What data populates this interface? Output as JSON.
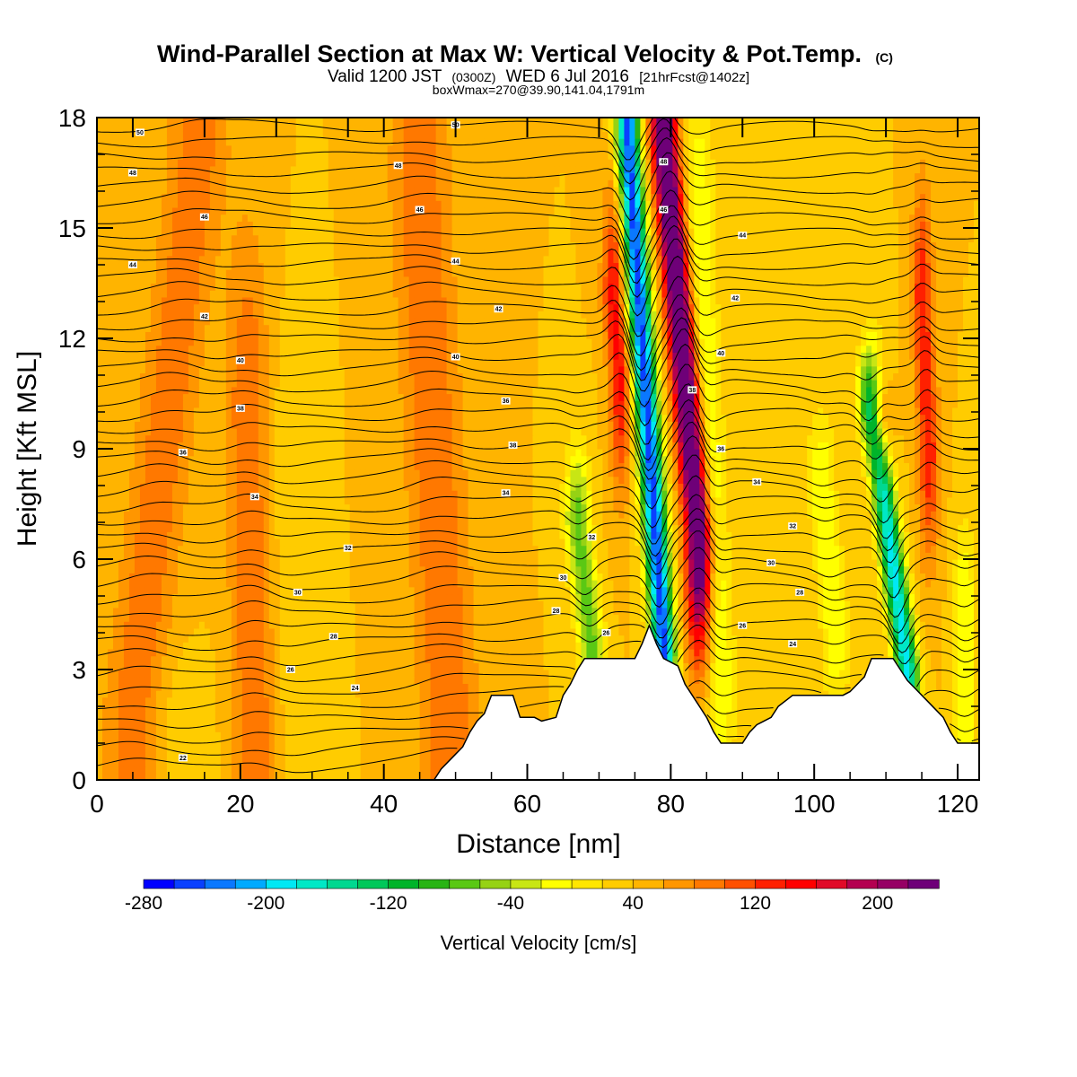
{
  "title": {
    "main": "Wind-Parallel Section at Max W: Vertical Velocity & Pot.Temp.",
    "copyright": "(C)",
    "valid_pre": "Valid 1200 JST",
    "valid_utc": "(0300Z)",
    "valid_post": "WED 6 Jul 2016",
    "forecast": "[21hrFcst@1402z]",
    "box": "boxWmax=270@39.90,141.04,1791m"
  },
  "colorbar": {
    "label": "Vertical Velocity [cm/s]",
    "tick_labels": [
      "-280",
      "-200",
      "-120",
      "-40",
      "40",
      "120",
      "200"
    ],
    "tick_values": [
      -280,
      -200,
      -120,
      -40,
      40,
      120,
      200
    ],
    "min": -280,
    "max": 240,
    "step": 20,
    "colors": [
      "#0000ff",
      "#0a40ff",
      "#0a78ff",
      "#00aaff",
      "#00e8f4",
      "#00e8c6",
      "#00d890",
      "#00c85a",
      "#00b42a",
      "#28b414",
      "#5ac814",
      "#96d214",
      "#c8e614",
      "#ffff00",
      "#ffe600",
      "#ffcc00",
      "#ffb400",
      "#ff9600",
      "#ff7800",
      "#ff5000",
      "#ff2000",
      "#ff0000",
      "#e00a28",
      "#b40050",
      "#960064",
      "#6e0078"
    ]
  },
  "chart_data": {
    "type": "contour-section",
    "xlabel": "Distance [nm]",
    "ylabel": "Height [Kft MSL]",
    "xlim": [
      0,
      123
    ],
    "ylim": [
      0,
      18
    ],
    "x_ticks": [
      0,
      20,
      40,
      60,
      80,
      100,
      120
    ],
    "x_tick_labels": [
      "0",
      "20",
      "40",
      "60",
      "80",
      "100",
      "120"
    ],
    "y_ticks": [
      0,
      3,
      6,
      9,
      12,
      15,
      18
    ],
    "y_tick_labels": [
      "0",
      "3",
      "6",
      "9",
      "12",
      "15",
      "18"
    ],
    "field": "Vertical Velocity [cm/s]",
    "background_w": 40,
    "w_features": [
      {
        "name": "weak-updraft-west",
        "x0": 5,
        "y0": 2,
        "x1": 14,
        "y1": 17,
        "sx": 4,
        "sy": 8,
        "w": 55
      },
      {
        "name": "weak-updraft-20",
        "x0": 22,
        "y0": 1,
        "x1": 21,
        "y1": 10,
        "sx": 3,
        "sy": 5,
        "w": 60
      },
      {
        "name": "weak-updraft-45",
        "x0": 49,
        "y0": 2,
        "x1": 45,
        "y1": 16,
        "sx": 4,
        "sy": 7,
        "w": 60
      },
      {
        "name": "weak-downdraft-12",
        "x0": 12,
        "y0": 0.4,
        "x1": 12,
        "y1": 2,
        "sx": 4,
        "sy": 1.5,
        "w": -15
      },
      {
        "name": "weak-downdraft-25",
        "x0": 28,
        "y0": 1,
        "x1": 26,
        "y1": 8,
        "sx": 3,
        "sy": 4,
        "w": -15
      },
      {
        "name": "downdraft-69",
        "x0": 69,
        "y0": 3.6,
        "x1": 67,
        "y1": 7,
        "sx": 1.8,
        "sy": 2,
        "w": -110
      },
      {
        "name": "updraft-72",
        "x0": 73,
        "y0": 11,
        "x1": 72,
        "y1": 13,
        "sx": 1.5,
        "sy": 3,
        "w": 110
      },
      {
        "name": "downdraft-79",
        "x0": 79,
        "y0": 3.6,
        "x1": 74,
        "y1": 17.5,
        "sx": 1.6,
        "sy": 3,
        "w": -290
      },
      {
        "name": "updraft-83",
        "x0": 84,
        "y0": 6.5,
        "x1": 79,
        "y1": 17.5,
        "sx": 1.8,
        "sy": 3,
        "w": 250
      },
      {
        "name": "downdraft-87",
        "x0": 87,
        "y0": 3,
        "x1": 84,
        "y1": 15,
        "sx": 2,
        "sy": 4,
        "w": -60
      },
      {
        "name": "downdraft-103",
        "x0": 103,
        "y0": 4,
        "x1": 101,
        "y1": 8,
        "sx": 2,
        "sy": 2,
        "w": -60
      },
      {
        "name": "updraft-108",
        "x0": 109,
        "y0": 10,
        "x1": 108,
        "y1": 12,
        "sx": 1.5,
        "sy": 2,
        "w": 100
      },
      {
        "name": "downdraft-112",
        "x0": 113,
        "y0": 3,
        "x1": 108,
        "y1": 10,
        "sx": 1.6,
        "sy": 3,
        "w": -230
      },
      {
        "name": "updraft-115",
        "x0": 116,
        "y0": 9,
        "x1": 115,
        "y1": 13,
        "sx": 1.4,
        "sy": 3,
        "w": 100
      },
      {
        "name": "downdraft-121",
        "x0": 121,
        "y0": 1.5,
        "x1": 121,
        "y1": 5,
        "sx": 1.5,
        "sy": 2,
        "w": -60
      }
    ],
    "terrain": {
      "x": [
        0,
        47,
        48,
        50,
        51,
        52,
        53,
        54,
        55,
        58,
        59,
        61,
        62,
        64,
        65,
        66,
        67,
        68,
        69,
        75,
        76,
        77,
        78,
        79,
        81,
        82,
        83,
        84,
        85,
        86,
        87,
        90,
        91,
        92,
        93,
        94,
        95,
        97,
        99,
        100,
        101,
        104,
        105,
        107,
        108,
        111,
        112,
        113,
        114,
        115,
        118,
        119,
        120,
        123
      ],
      "y": [
        0,
        0,
        0.3,
        0.7,
        0.9,
        1.3,
        1.6,
        1.8,
        2.3,
        2.3,
        1.7,
        1.7,
        1.6,
        1.7,
        2.3,
        2.6,
        3.0,
        3.3,
        3.3,
        3.3,
        3.7,
        4.2,
        3.7,
        3.3,
        3.1,
        2.6,
        2.3,
        2.0,
        1.7,
        1.3,
        1.0,
        1.0,
        1.3,
        1.5,
        1.6,
        1.7,
        2.0,
        2.3,
        2.3,
        2.3,
        2.3,
        2.3,
        2.4,
        2.8,
        3.3,
        3.3,
        3.0,
        2.7,
        2.5,
        2.3,
        1.7,
        1.3,
        1.0,
        1.0
      ]
    },
    "theta": {
      "levels": [
        22,
        24,
        26,
        28,
        30,
        32,
        34,
        36,
        38,
        40,
        42,
        44,
        46,
        48,
        50
      ],
      "minor_per_label": 3,
      "labels": [
        {
          "text": "22",
          "x": 12,
          "y": 0.6
        },
        {
          "text": "24",
          "x": 36,
          "y": 2.5
        },
        {
          "text": "26",
          "x": 27,
          "y": 3.0
        },
        {
          "text": "28",
          "x": 33,
          "y": 3.9
        },
        {
          "text": "30",
          "x": 28,
          "y": 5.1
        },
        {
          "text": "32",
          "x": 35,
          "y": 6.3
        },
        {
          "text": "34",
          "x": 22,
          "y": 7.7
        },
        {
          "text": "36",
          "x": 12,
          "y": 8.9
        },
        {
          "text": "38",
          "x": 20,
          "y": 10.1
        },
        {
          "text": "40",
          "x": 20,
          "y": 11.4
        },
        {
          "text": "42",
          "x": 15,
          "y": 12.6
        },
        {
          "text": "44",
          "x": 5,
          "y": 14.0
        },
        {
          "text": "46",
          "x": 15,
          "y": 15.3
        },
        {
          "text": "48",
          "x": 5,
          "y": 16.5
        },
        {
          "text": "50",
          "x": 6,
          "y": 17.6
        },
        {
          "text": "36",
          "x": 57,
          "y": 10.3
        },
        {
          "text": "38",
          "x": 58,
          "y": 9.1
        },
        {
          "text": "34",
          "x": 57,
          "y": 7.8
        },
        {
          "text": "32",
          "x": 69,
          "y": 6.6
        },
        {
          "text": "30",
          "x": 65,
          "y": 5.5
        },
        {
          "text": "28",
          "x": 64,
          "y": 4.6
        },
        {
          "text": "26",
          "x": 71,
          "y": 4.0
        },
        {
          "text": "40",
          "x": 50,
          "y": 11.5
        },
        {
          "text": "42",
          "x": 56,
          "y": 12.8
        },
        {
          "text": "44",
          "x": 50,
          "y": 14.1
        },
        {
          "text": "46",
          "x": 45,
          "y": 15.5
        },
        {
          "text": "48",
          "x": 42,
          "y": 16.7
        },
        {
          "text": "50",
          "x": 50,
          "y": 17.8
        },
        {
          "text": "48",
          "x": 79,
          "y": 16.8
        },
        {
          "text": "46",
          "x": 79,
          "y": 15.5
        },
        {
          "text": "44",
          "x": 90,
          "y": 14.8
        },
        {
          "text": "42",
          "x": 89,
          "y": 13.1
        },
        {
          "text": "40",
          "x": 87,
          "y": 11.6
        },
        {
          "text": "38",
          "x": 83,
          "y": 10.6
        },
        {
          "text": "36",
          "x": 87,
          "y": 9.0
        },
        {
          "text": "34",
          "x": 92,
          "y": 8.1
        },
        {
          "text": "32",
          "x": 97,
          "y": 6.9
        },
        {
          "text": "30",
          "x": 94,
          "y": 5.9
        },
        {
          "text": "28",
          "x": 98,
          "y": 5.1
        },
        {
          "text": "26",
          "x": 90,
          "y": 4.2
        },
        {
          "text": "24",
          "x": 97,
          "y": 3.7
        }
      ]
    },
    "wind_barb_ticks": [
      {
        "x": 5,
        "y": 18
      },
      {
        "x": 15,
        "y": 18
      },
      {
        "x": 25,
        "y": 18
      },
      {
        "x": 35,
        "y": 18
      },
      {
        "x": 40,
        "y": 18
      },
      {
        "x": 50,
        "y": 18
      },
      {
        "x": 60,
        "y": 18
      },
      {
        "x": 70,
        "y": 18
      },
      {
        "x": 80,
        "y": 18
      },
      {
        "x": 90,
        "y": 18
      },
      {
        "x": 100,
        "y": 18
      },
      {
        "x": 110,
        "y": 18
      },
      {
        "x": 120,
        "y": 18
      }
    ]
  }
}
